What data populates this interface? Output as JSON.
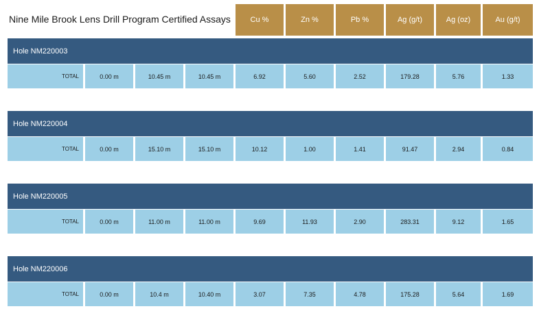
{
  "title": "Nine Mile Brook Lens Drill Program Certified Assays",
  "columns": [
    "Cu %",
    "Zn %",
    "Pb %",
    "Ag (g/t)",
    "Ag (oz)",
    "Au (g/t)"
  ],
  "holes": [
    {
      "name": "Hole NM220003",
      "label": "TOTAL",
      "from": "0.00 m",
      "to": "10.45 m",
      "width": "10.45 m",
      "cu": "6.92",
      "zn": "5.60",
      "pb": "2.52",
      "ag_gt": "179.28",
      "ag_oz": "5.76",
      "au": "1.33"
    },
    {
      "name": "Hole NM220004",
      "label": "TOTAL",
      "from": "0.00 m",
      "to": "15.10 m",
      "width": "15.10 m",
      "cu": "10.12",
      "zn": "1.00",
      "pb": "1.41",
      "ag_gt": "91.47",
      "ag_oz": "2.94",
      "au": "0.84"
    },
    {
      "name": "Hole NM220005",
      "label": "TOTAL",
      "from": "0.00 m",
      "to": "11.00 m",
      "width": "11.00 m",
      "cu": "9.69",
      "zn": "11.93",
      "pb": "2.90",
      "ag_gt": "283.31",
      "ag_oz": "9.12",
      "au": "1.65"
    },
    {
      "name": "Hole NM220006",
      "label": "TOTAL",
      "from": "0.00 m",
      "to": "10.4 m",
      "width": "10.40 m",
      "cu": "3.07",
      "zn": "7.35",
      "pb": "4.78",
      "ag_gt": "175.28",
      "ag_oz": "5.64",
      "au": "1.69"
    }
  ],
  "colors": {
    "header": "#b98f48",
    "hole_bar": "#355a80",
    "row": "#9dcfe6"
  }
}
